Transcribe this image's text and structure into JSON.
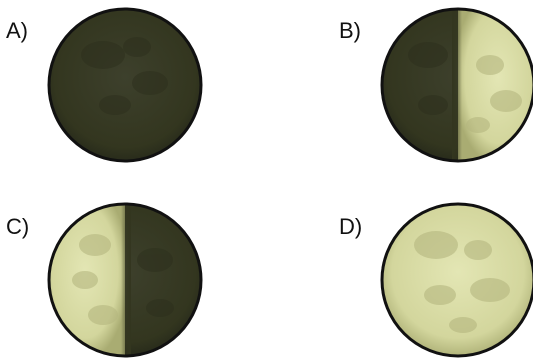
{
  "options": [
    {
      "label": "A)",
      "phase": "new-moon",
      "lit_fraction": 0,
      "lit_side": "none"
    },
    {
      "label": "B)",
      "phase": "first-quarter",
      "lit_fraction": 0.5,
      "lit_side": "right"
    },
    {
      "label": "C)",
      "phase": "last-quarter",
      "lit_fraction": 0.5,
      "lit_side": "left"
    },
    {
      "label": "D)",
      "phase": "full-moon",
      "lit_fraction": 1,
      "lit_side": "all"
    }
  ],
  "colors": {
    "dark": "#353826",
    "lit": "#d9dca6",
    "outline": "#111111"
  }
}
